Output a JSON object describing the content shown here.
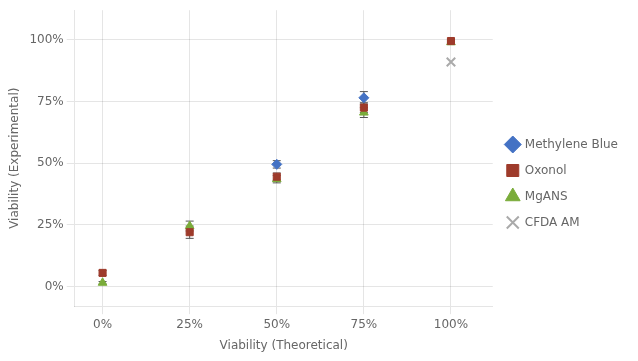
{
  "chart_data": {
    "type": "scatter",
    "xlabel": "Viability (Theoretical)",
    "ylabel": "Viability (Experimental)",
    "xlim": [
      -8,
      112
    ],
    "ylim": [
      -8,
      112
    ],
    "xticks": [
      {
        "value": 0,
        "label": "0%"
      },
      {
        "value": 25,
        "label": "25%"
      },
      {
        "value": 50,
        "label": "50%"
      },
      {
        "value": 75,
        "label": "75%"
      },
      {
        "value": 100,
        "label": "100%"
      }
    ],
    "yticks": [
      {
        "value": 0,
        "label": "0%"
      },
      {
        "value": 25,
        "label": "25%"
      },
      {
        "value": 50,
        "label": "50%"
      },
      {
        "value": 75,
        "label": "75%"
      },
      {
        "value": 100,
        "label": "100%"
      }
    ],
    "grid": true,
    "legend": "right",
    "series": [
      {
        "name": "Methylene Blue",
        "color": "#4472C4",
        "marker": "diamond",
        "x": [
          50,
          75
        ],
        "values": [
          49.5,
          76.5
        ],
        "errors": [
          1.5,
          2.5
        ]
      },
      {
        "name": "Oxonol",
        "color": "#9E3B2B",
        "marker": "square",
        "x": [
          0,
          25,
          50,
          75,
          100
        ],
        "values": [
          5.5,
          22.0,
          44.5,
          72.5,
          99.5
        ],
        "errors": [
          1.0,
          2.5,
          1.5,
          2.0,
          0.5
        ]
      },
      {
        "name": "MgANS",
        "color": "#7AAC3A",
        "marker": "triangle",
        "x": [
          0,
          25,
          50,
          75,
          100
        ],
        "values": [
          1.5,
          24.5,
          43.5,
          70.5,
          99.0
        ],
        "errors": [
          0.5,
          2.0,
          1.5,
          2.0,
          0.5
        ]
      },
      {
        "name": "CFDA AM",
        "color": "#AAAAAA",
        "marker": "x",
        "x": [
          100
        ],
        "values": [
          91.0
        ],
        "errors": [
          null
        ]
      }
    ]
  }
}
